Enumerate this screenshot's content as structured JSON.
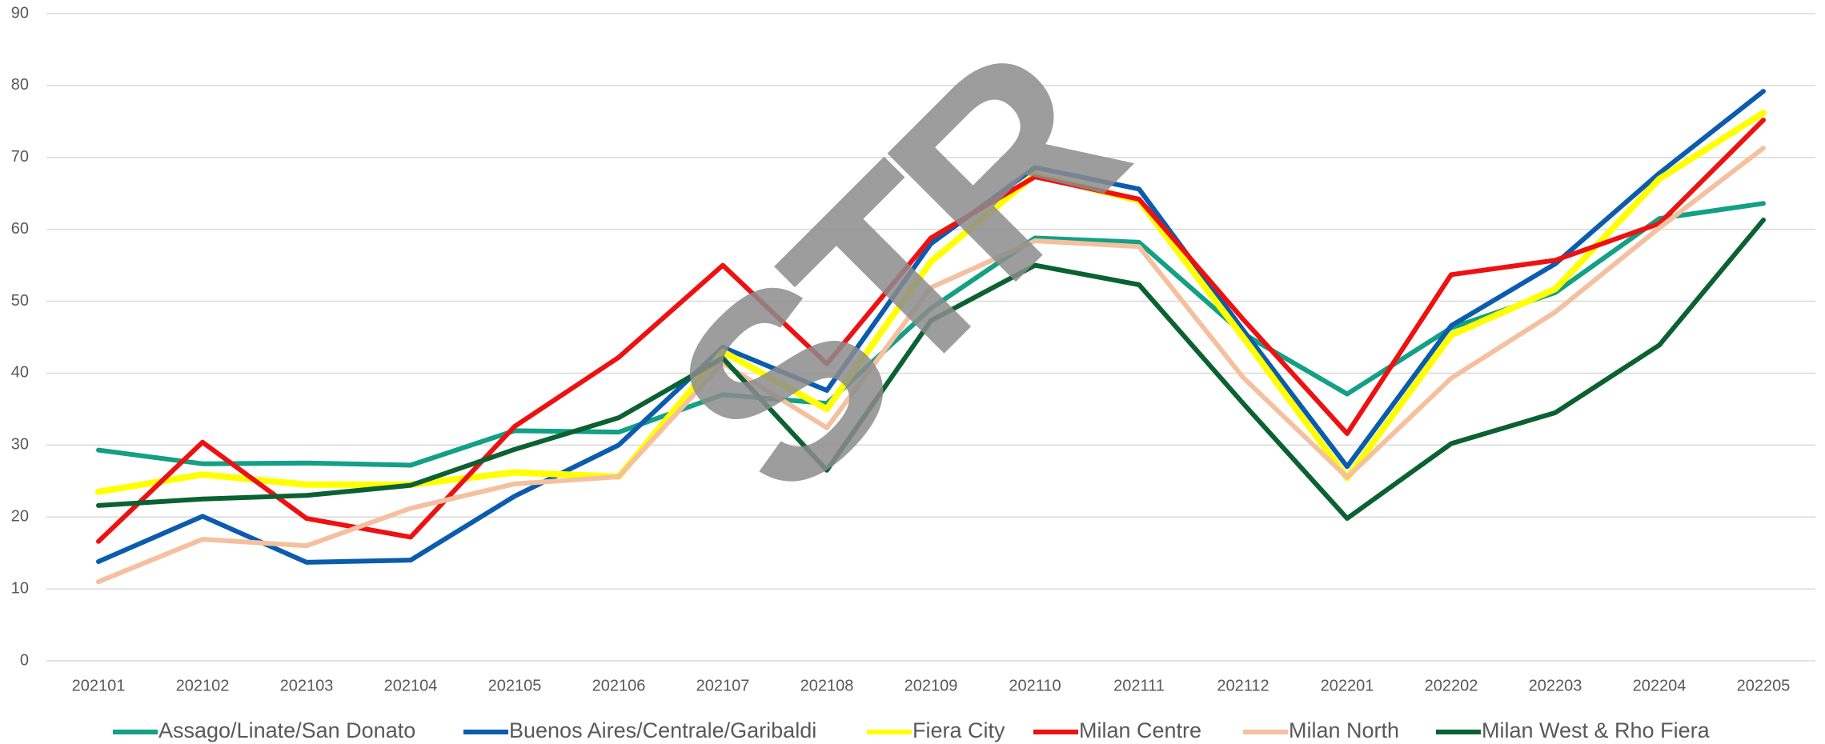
{
  "chart_data": {
    "type": "line",
    "watermark": "STR",
    "categories": [
      "202101",
      "202102",
      "202103",
      "202104",
      "202105",
      "202106",
      "202107",
      "202108",
      "202109",
      "202110",
      "202111",
      "202112",
      "202201",
      "202202",
      "202203",
      "202204",
      "202205"
    ],
    "ylim": [
      0,
      90
    ],
    "yticks": [
      0,
      10,
      20,
      30,
      40,
      50,
      60,
      70,
      80,
      90
    ],
    "grid": true,
    "legend": "bottom",
    "series": [
      {
        "name": "Assago/Linate/San Donato",
        "color": "#13a085",
        "values": [
          29.3,
          27.4,
          27.5,
          27.2,
          32,
          31.8,
          37,
          35.8,
          49,
          58.8,
          58.2,
          45.5,
          37.1,
          46.3,
          51.2,
          61.5,
          63.6
        ]
      },
      {
        "name": "Buenos Aires/Centrale/Garibaldi",
        "color": "#0b5cad",
        "values": [
          13.8,
          20.1,
          13.7,
          14,
          22.9,
          30,
          43.6,
          37.6,
          58,
          68.6,
          65.6,
          46,
          27,
          46.6,
          55.2,
          67.8,
          79.2
        ]
      },
      {
        "name": "Fiera City",
        "color": "#ffff00",
        "values": [
          23.5,
          25.9,
          24.5,
          24.5,
          26.2,
          25.6,
          43,
          35,
          55.5,
          67.6,
          64,
          45,
          25.4,
          45.3,
          51.7,
          67,
          76.2
        ]
      },
      {
        "name": "Milan Centre",
        "color": "#ee1111",
        "values": [
          16.6,
          30.4,
          19.8,
          17.2,
          32.6,
          42.2,
          55,
          41.3,
          58.8,
          67.3,
          64.2,
          47.5,
          31.6,
          53.7,
          55.7,
          60.8,
          75.2
        ]
      },
      {
        "name": "Milan North",
        "color": "#f4c09f",
        "values": [
          11,
          16.9,
          16,
          21.2,
          24.6,
          25.6,
          41.4,
          32.4,
          51.9,
          58.4,
          57.6,
          39.4,
          25.5,
          39.3,
          48.5,
          60.2,
          71.3
        ]
      },
      {
        "name": "Milan West & Rho Fiera",
        "color": "#0b6132",
        "values": [
          21.6,
          22.5,
          23,
          24.4,
          29.4,
          33.8,
          42.1,
          26.5,
          47.3,
          55,
          52.3,
          35.8,
          19.8,
          30.2,
          34.5,
          43.9,
          61.3
        ]
      }
    ]
  }
}
